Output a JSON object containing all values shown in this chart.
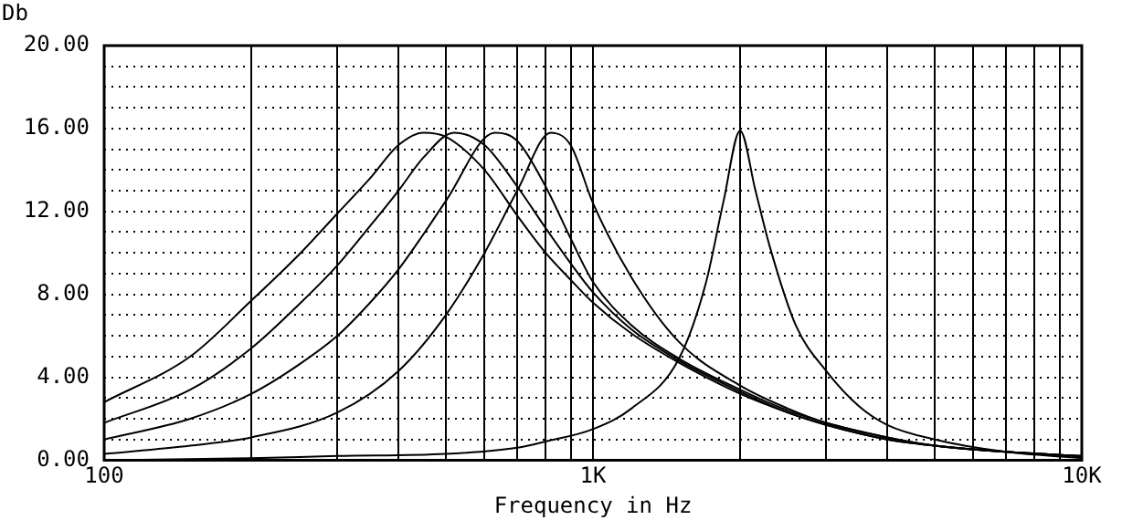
{
  "chart_data": {
    "type": "line",
    "xlabel": "Frequency in Hz",
    "ylabel": "Db",
    "log": "x",
    "grid": true,
    "marker": "none",
    "xlim": [
      100,
      10000
    ],
    "xticks": [
      100,
      {
        "value": 200,
        "label": null
      },
      {
        "value": 300,
        "label": null
      },
      {
        "value": 400,
        "label": null
      },
      {
        "value": 500,
        "label": null
      },
      {
        "value": 600,
        "label": null
      },
      {
        "value": 700,
        "label": null
      },
      {
        "value": 800,
        "label": null
      },
      {
        "value": 900,
        "label": null
      },
      {
        "value": 1000,
        "label": "1K"
      },
      {
        "value": 2000,
        "label": null
      },
      {
        "value": 3000,
        "label": null
      },
      {
        "value": 4000,
        "label": null
      },
      {
        "value": 5000,
        "label": null
      },
      {
        "value": 6000,
        "label": null
      },
      {
        "value": 7000,
        "label": null
      },
      {
        "value": 8000,
        "label": null
      },
      {
        "value": 9000,
        "label": null
      },
      {
        "value": 10000,
        "label": "10K"
      }
    ],
    "ylim": [
      0,
      20
    ],
    "yticks": [
      {
        "value": 0,
        "label": "0.00"
      },
      {
        "value": 1,
        "label": null
      },
      {
        "value": 2,
        "label": null
      },
      {
        "value": 3,
        "label": null
      },
      {
        "value": 4,
        "label": "4.00"
      },
      {
        "value": 5,
        "label": null
      },
      {
        "value": 6,
        "label": null
      },
      {
        "value": 7,
        "label": null
      },
      {
        "value": 8,
        "label": "8.00"
      },
      {
        "value": 9,
        "label": null
      },
      {
        "value": 10,
        "label": null
      },
      {
        "value": 11,
        "label": null
      },
      {
        "value": 12,
        "label": "12.00"
      },
      {
        "value": 13,
        "label": null
      },
      {
        "value": 14,
        "label": null
      },
      {
        "value": 15,
        "label": null
      },
      {
        "value": 16,
        "label": "16.00"
      },
      {
        "value": 17,
        "label": null
      },
      {
        "value": 18,
        "label": null
      },
      {
        "value": 19,
        "label": null
      },
      {
        "value": 20,
        "label": "20.00"
      }
    ],
    "series": [
      {
        "color": "#000000",
        "x": [
          100,
          150,
          200,
          250,
          300,
          350,
          400,
          450,
          500,
          600,
          700,
          800,
          900,
          1000,
          1200,
          1500,
          2000,
          2500,
          3000,
          4000,
          5000,
          7000,
          10000
        ],
        "values": [
          2.8,
          5.0,
          7.7,
          9.9,
          11.9,
          13.6,
          15.2,
          15.8,
          15.6,
          14.0,
          11.8,
          10.0,
          8.7,
          7.6,
          6.1,
          4.7,
          3.2,
          2.3,
          1.7,
          1.0,
          0.7,
          0.4,
          0.2
        ]
      },
      {
        "color": "#000000",
        "x": [
          100,
          150,
          200,
          250,
          300,
          350,
          400,
          450,
          520,
          600,
          700,
          800,
          900,
          1000,
          1200,
          1500,
          2000,
          2500,
          3000,
          4000,
          5000,
          7000,
          10000
        ],
        "values": [
          1.8,
          3.4,
          5.4,
          7.5,
          9.4,
          11.3,
          13.0,
          14.6,
          15.8,
          15.2,
          13.2,
          11.2,
          9.5,
          8.1,
          6.3,
          4.8,
          3.3,
          2.3,
          1.7,
          1.0,
          0.7,
          0.4,
          0.2
        ]
      },
      {
        "color": "#000000",
        "x": [
          100,
          150,
          200,
          250,
          300,
          350,
          400,
          450,
          500,
          630,
          700,
          800,
          900,
          1000,
          1200,
          1500,
          2000,
          2500,
          3000,
          4000,
          5000,
          7000,
          10000
        ],
        "values": [
          1.0,
          2.0,
          3.2,
          4.6,
          6.0,
          7.6,
          9.2,
          10.9,
          12.5,
          15.8,
          15.4,
          13.2,
          10.7,
          8.6,
          6.5,
          4.9,
          3.4,
          2.4,
          1.8,
          1.1,
          0.7,
          0.4,
          0.2
        ]
      },
      {
        "color": "#000000",
        "x": [
          100,
          150,
          200,
          300,
          400,
          500,
          600,
          700,
          820,
          900,
          1000,
          1200,
          1500,
          2000,
          2500,
          3000,
          4000,
          5000,
          7000,
          10000
        ],
        "values": [
          0.3,
          0.7,
          1.1,
          2.3,
          4.3,
          7.0,
          10.0,
          13.0,
          15.8,
          15.2,
          12.4,
          8.8,
          5.7,
          3.6,
          2.5,
          1.8,
          1.1,
          0.7,
          0.4,
          0.2
        ]
      },
      {
        "color": "#000000",
        "x": [
          100,
          200,
          300,
          500,
          700,
          800,
          1000,
          1200,
          1500,
          1700,
          1850,
          2000,
          2150,
          2300,
          2600,
          3000,
          3500,
          4000,
          5000,
          7000,
          10000
        ],
        "values": [
          0.0,
          0.1,
          0.2,
          0.3,
          0.6,
          0.9,
          1.5,
          2.5,
          4.9,
          8.5,
          12.5,
          15.9,
          13.0,
          10.3,
          6.5,
          4.3,
          2.6,
          1.7,
          1.0,
          0.4,
          0.1
        ]
      }
    ]
  }
}
